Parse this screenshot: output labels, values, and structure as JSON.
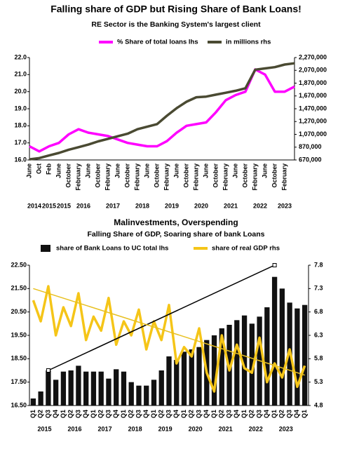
{
  "chart_data": [
    {
      "type": "line",
      "title": "Falling share of GDP but Rising Share of Bank Loans!",
      "subtitle": "RE Sector is the Banking System's largest client",
      "categories": [
        "June",
        "Oct",
        "Feb",
        "June",
        "October",
        "February",
        "June",
        "October",
        "February",
        "June",
        "October",
        "February",
        "June",
        "October",
        "February",
        "June",
        "October",
        "February",
        "June",
        "October",
        "February",
        "June",
        "October",
        "February",
        "June",
        "October",
        "February",
        null
      ],
      "group_labels": [
        "2014",
        "2015",
        "2015",
        "2016",
        "2017",
        "2018",
        "2019",
        "2020",
        "2021",
        "2022",
        "2023"
      ],
      "series": [
        {
          "name": "% Share of total loans lhs",
          "color": "#ff00ff",
          "axis": "y",
          "values": [
            16.8,
            16.5,
            16.8,
            17.0,
            17.5,
            17.8,
            17.6,
            17.5,
            17.4,
            17.2,
            17.0,
            16.9,
            16.8,
            16.8,
            17.1,
            17.6,
            18.0,
            18.1,
            18.2,
            18.8,
            19.5,
            19.8,
            20.0,
            21.3,
            21.0,
            20.0,
            20.0,
            20.3
          ]
        },
        {
          "name": "in millions rhs",
          "color": "#4a4a32",
          "axis": "y2",
          "values": [
            680000,
            700000,
            740000,
            780000,
            830000,
            870000,
            910000,
            960000,
            1000000,
            1040000,
            1080000,
            1150000,
            1190000,
            1230000,
            1360000,
            1480000,
            1580000,
            1650000,
            1660000,
            1690000,
            1720000,
            1750000,
            1790000,
            2080000,
            2100000,
            2120000,
            2160000,
            2180000
          ]
        }
      ],
      "ylim": [
        16,
        22
      ],
      "yticks": [
        {
          "value": 16,
          "label": "16.0"
        },
        {
          "value": 17,
          "label": "17.0"
        },
        {
          "value": 18,
          "label": "18.0"
        },
        {
          "value": 19,
          "label": "19.0"
        },
        {
          "value": 20,
          "label": "20.0"
        },
        {
          "value": 21,
          "label": "21.0"
        },
        {
          "value": 22,
          "label": "22.0"
        }
      ],
      "y2lim": [
        670000,
        2270000
      ],
      "y2ticks": [
        {
          "value": 670000,
          "label": "670,000"
        },
        {
          "value": 870000,
          "label": "870,000"
        },
        {
          "value": 1070000,
          "label": "1,070,000"
        },
        {
          "value": 1270000,
          "label": "1,270,000"
        },
        {
          "value": 1470000,
          "label": "1,470,000"
        },
        {
          "value": 1670000,
          "label": "1,670,000"
        },
        {
          "value": 1870000,
          "label": "1,870,000"
        },
        {
          "value": 2070000,
          "label": "2,070,000"
        },
        {
          "value": 2270000,
          "label": "2,270,000"
        }
      ],
      "grid": false
    },
    {
      "type": "bar",
      "title": "Malinvestments, Overspending",
      "subtitle": "Falling Share of GDP, Soaring share of bank Loans",
      "categories": [
        "Q1",
        "Q2",
        "Q3",
        "Q4",
        "Q1",
        "Q2",
        "Q3",
        "Q4",
        "Q1",
        "Q2",
        "Q3",
        "Q4",
        "Q1",
        "Q2",
        "Q3",
        "Q4",
        "Q1",
        "Q2",
        "Q3",
        "Q4",
        "Q1",
        "Q2",
        "Q3",
        "Q4",
        "Q1",
        "Q2",
        "Q3",
        "Q4",
        "Q1",
        "Q2",
        "Q3",
        "Q4",
        "Q1",
        "Q2",
        "Q3",
        "Q4",
        "Q1"
      ],
      "group_labels": [
        "2015",
        "2016",
        "2017",
        "2018",
        "2019",
        "2020",
        "2021",
        "2022",
        "2023"
      ],
      "series": [
        {
          "name": "share of Bank Loans to UC total lhs",
          "color": "#111111",
          "axis": "y",
          "type": "bar",
          "values": [
            16.8,
            17.1,
            18.0,
            17.6,
            17.95,
            18.0,
            18.2,
            17.95,
            17.95,
            17.95,
            17.65,
            18.05,
            17.95,
            17.5,
            17.35,
            17.35,
            17.6,
            18.0,
            18.6,
            18.45,
            18.8,
            18.9,
            19.0,
            19.3,
            19.5,
            19.8,
            19.95,
            20.15,
            20.35,
            20.0,
            20.3,
            20.7,
            22.0,
            21.5,
            20.9,
            20.65,
            20.8
          ]
        },
        {
          "name": "share of real GDP rhs",
          "color": "#f5c518",
          "axis": "y2",
          "type": "line",
          "values": [
            7.05,
            6.6,
            7.35,
            6.3,
            6.9,
            6.5,
            7.2,
            6.2,
            6.7,
            6.4,
            7.1,
            6.1,
            6.6,
            6.3,
            6.85,
            6.0,
            6.6,
            6.2,
            6.95,
            5.7,
            6.05,
            5.85,
            6.45,
            5.5,
            5.1,
            6.3,
            5.55,
            6.1,
            5.6,
            5.5,
            6.25,
            5.3,
            5.7,
            5.4,
            6.0,
            5.2,
            5.65
          ]
        }
      ],
      "trendlines": [
        {
          "axis": "y",
          "color": "#000000",
          "x": [
            2,
            32
          ],
          "values": [
            18.0,
            22.5
          ]
        },
        {
          "axis": "y2",
          "color": "#e8c020",
          "x": [
            0,
            36
          ],
          "values": [
            7.3,
            5.45
          ]
        }
      ],
      "ylim": [
        16.5,
        22.5
      ],
      "yticks": [
        {
          "value": 16.5,
          "label": "16.50"
        },
        {
          "value": 17.5,
          "label": "17.50"
        },
        {
          "value": 18.5,
          "label": "18.50"
        },
        {
          "value": 19.5,
          "label": "19.50"
        },
        {
          "value": 20.5,
          "label": "20.50"
        },
        {
          "value": 21.5,
          "label": "21.50"
        },
        {
          "value": 22.5,
          "label": "22.50"
        }
      ],
      "y2lim": [
        4.8,
        7.8
      ],
      "y2ticks": [
        4.8,
        5.3,
        5.8,
        6.3,
        6.8,
        7.3,
        7.8
      ],
      "grid": false
    }
  ]
}
